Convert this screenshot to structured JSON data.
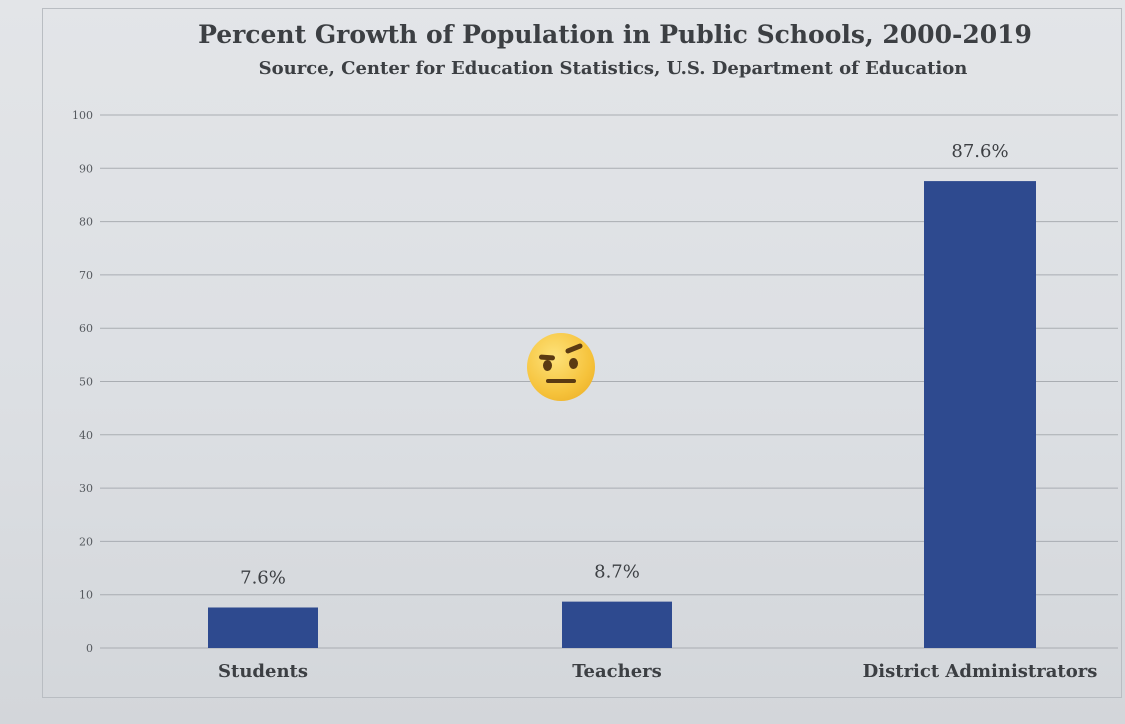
{
  "chart_data": {
    "type": "bar",
    "title": "Percent Growth of Population in Public Schools, 2000-2019",
    "subtitle": "Source, Center for Education Statistics, U.S. Department of Education",
    "categories": [
      "Students",
      "Teachers",
      "District Administrators"
    ],
    "values": [
      7.6,
      8.7,
      87.6
    ],
    "value_labels": [
      "7.6%",
      "8.7%",
      "87.6%"
    ],
    "ylim": [
      0,
      100
    ],
    "yticks": [
      0,
      10,
      20,
      30,
      40,
      50,
      60,
      70,
      80,
      90,
      100
    ],
    "xlabel": "",
    "ylabel": "",
    "grid": true,
    "bar_color": "#2e4a8f"
  },
  "decoration": {
    "emoji": "raised-eyebrow-face-icon"
  }
}
